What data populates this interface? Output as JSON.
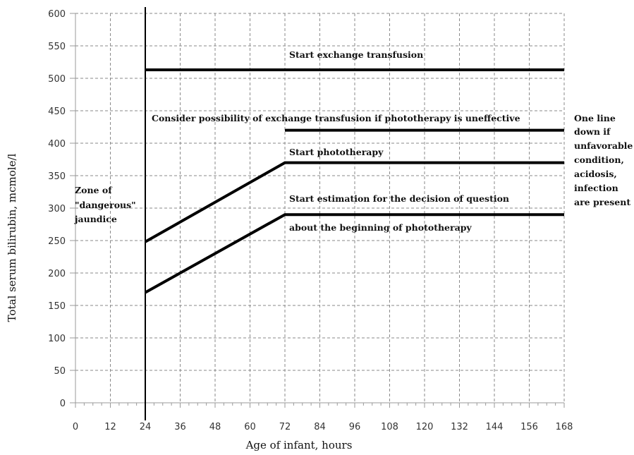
{
  "chart_data": {
    "type": "line",
    "title": "",
    "xlabel": "Age of infant, hours",
    "ylabel": "Total serum bilirubin, mcmole/l",
    "xlim": [
      0,
      168
    ],
    "ylim": [
      0,
      600
    ],
    "x_ticks": [
      0,
      12,
      24,
      36,
      48,
      60,
      72,
      84,
      96,
      108,
      120,
      132,
      144,
      156,
      168
    ],
    "x_tick_labels": [
      "0",
      "12",
      "24",
      "36",
      "48",
      "60",
      "72",
      "84",
      "96",
      "108",
      "120",
      "132",
      "144",
      "156",
      "168"
    ],
    "y_ticks": [
      0,
      50,
      100,
      150,
      200,
      250,
      300,
      350,
      400,
      450,
      500,
      550,
      600
    ],
    "y_tick_labels": [
      "0",
      "50",
      "100",
      "150",
      "200",
      "250",
      "300",
      "350",
      "400",
      "450",
      "500",
      "550",
      "600"
    ],
    "grid": true,
    "vertical_reference_x": 24,
    "series": [
      {
        "x": [
          24,
          168
        ],
        "y": [
          513,
          513
        ]
      },
      {
        "x": [
          72,
          168
        ],
        "y": [
          420,
          420
        ]
      },
      {
        "x": [
          24,
          72,
          168
        ],
        "y": [
          248,
          370,
          370
        ]
      },
      {
        "x": [
          24,
          72,
          168
        ],
        "y": [
          170,
          290,
          290
        ]
      }
    ],
    "annotations": {
      "exchange": "Start exchange transfusion",
      "consider": "Consider possibility of exchange transfusion if phototherapy is uneffective",
      "phototherapy": "Start phototherapy",
      "estimation_line1": "Start estimation for the decision of question",
      "estimation_line2": "about the beginning of phototherapy",
      "zone": [
        "Zone of",
        "\"dangerous\"",
        "jaundice"
      ],
      "right_note": [
        "One line",
        "down if",
        "unfavorable",
        "condition,",
        "acidosis,",
        "infection",
        "are present"
      ]
    }
  }
}
